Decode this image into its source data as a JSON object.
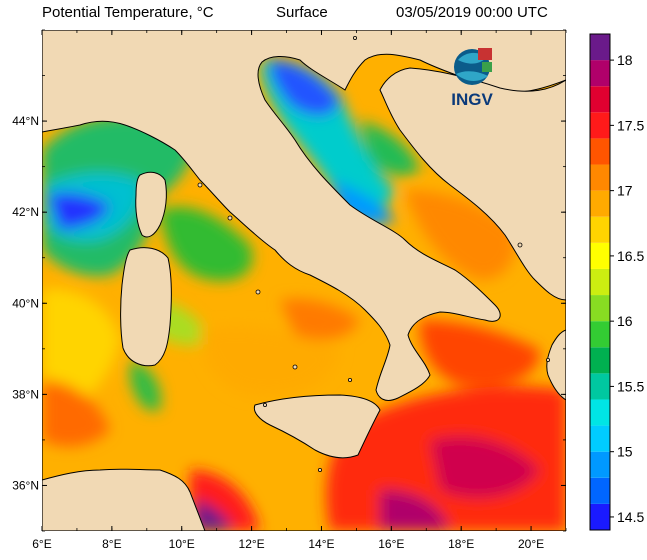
{
  "header": {
    "variable": "Potential Temperature, °C",
    "level": "Surface",
    "datetime": "03/05/2019 00:00 UTC"
  },
  "logo": {
    "text": "INGV"
  },
  "axes": {
    "lon_ticks": [
      "6°E",
      "8°E",
      "10°E",
      "12°E",
      "14°E",
      "16°E",
      "18°E",
      "20°E"
    ],
    "lat_ticks": [
      "36°N",
      "38°N",
      "40°N",
      "42°N",
      "44°N"
    ],
    "lon_range": [
      6,
      21
    ],
    "lat_range": [
      35,
      46
    ]
  },
  "colorbar": {
    "labels": [
      "14.5",
      "15",
      "15.5",
      "16",
      "16.5",
      "17",
      "17.5",
      "18"
    ],
    "range": [
      14.4,
      18.2
    ],
    "colors": [
      "#1a1aff",
      "#0066ff",
      "#0099ff",
      "#00ccff",
      "#00e5e5",
      "#00c8a0",
      "#00b050",
      "#33cc33",
      "#88dd22",
      "#ccee11",
      "#ffff00",
      "#ffd400",
      "#ffaa00",
      "#ff8800",
      "#ff5500",
      "#ff1a1a",
      "#e00030",
      "#b0006a",
      "#6a1a8a"
    ]
  },
  "colors": {
    "land": "#f1d9b4",
    "coast": "#000000"
  }
}
